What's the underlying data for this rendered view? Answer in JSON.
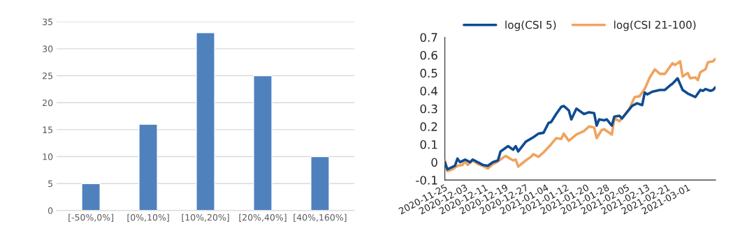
{
  "chart_data": [
    {
      "type": "bar",
      "categories": [
        "[-50%,0%]",
        "[0%,10%]",
        "[10%,20%]",
        "[20%,40%]",
        "[40%,160%]"
      ],
      "values": [
        5,
        16,
        33,
        25,
        10
      ],
      "color": "#4f81bd",
      "ylim": [
        0,
        35
      ],
      "yticks": [
        0,
        5,
        10,
        15,
        20,
        25,
        30,
        35
      ],
      "grid": "y",
      "legend": false
    },
    {
      "type": "line",
      "legend": "top",
      "grid": false,
      "xlim": [
        "2020-11-25",
        "2021-03-12"
      ],
      "ylim": [
        -0.1,
        0.7
      ],
      "yticks": [
        {
          "value": -0.1,
          "label": "-0.1"
        },
        0,
        0.1,
        0.2,
        0.3,
        0.4,
        0.5,
        0.6,
        0.7
      ],
      "xticks": [
        "2020-11-25",
        "2020-12-03",
        "2020-12-11",
        "2020-12-19",
        "2020-12-27",
        "2021-01-04",
        "2021-01-12",
        "2021-01-20",
        "2021-01-28",
        "2021-02-05",
        "2021-02-13",
        "2021-02-21",
        "2021-03-01"
      ],
      "series": [
        {
          "name": "log(CSI 5)",
          "color": "#0e4c92",
          "x": [
            "2020-11-25",
            "2020-11-26",
            "2020-11-29",
            "2020-11-30",
            "2020-12-01",
            "2020-12-03",
            "2020-12-05",
            "2020-12-06",
            "2020-12-08",
            "2020-12-10",
            "2020-12-12",
            "2020-12-14",
            "2020-12-16",
            "2020-12-17",
            "2020-12-20",
            "2020-12-22",
            "2020-12-23",
            "2020-12-24",
            "2020-12-27",
            "2020-12-30",
            "2021-01-01",
            "2021-01-03",
            "2021-01-05",
            "2021-01-06",
            "2021-01-08",
            "2021-01-10",
            "2021-01-11",
            "2021-01-13",
            "2021-01-14",
            "2021-01-16",
            "2021-01-19",
            "2021-01-21",
            "2021-01-23",
            "2021-01-24",
            "2021-01-25",
            "2021-01-27",
            "2021-01-28",
            "2021-01-30",
            "2021-01-31",
            "2021-02-02",
            "2021-02-03",
            "2021-02-05",
            "2021-02-07",
            "2021-02-09",
            "2021-02-11",
            "2021-02-12",
            "2021-02-13",
            "2021-02-15",
            "2021-02-18",
            "2021-02-20",
            "2021-02-22",
            "2021-02-23",
            "2021-02-25",
            "2021-02-27",
            "2021-03-01",
            "2021-03-04",
            "2021-03-06",
            "2021-03-07",
            "2021-03-08",
            "2021-03-10",
            "2021-03-11",
            "2021-03-12"
          ],
          "values": [
            0.0,
            -0.04,
            -0.02,
            0.02,
            0.0,
            0.015,
            0.0,
            0.015,
            0.0,
            -0.015,
            -0.02,
            0.0,
            0.01,
            0.06,
            0.09,
            0.07,
            0.09,
            0.06,
            0.115,
            0.14,
            0.16,
            0.165,
            0.22,
            0.225,
            0.27,
            0.31,
            0.315,
            0.29,
            0.24,
            0.3,
            0.27,
            0.28,
            0.275,
            0.205,
            0.24,
            0.235,
            0.24,
            0.205,
            0.255,
            0.26,
            0.245,
            0.28,
            0.315,
            0.33,
            0.32,
            0.39,
            0.38,
            0.395,
            0.405,
            0.405,
            0.43,
            0.44,
            0.47,
            0.405,
            0.385,
            0.365,
            0.405,
            0.4,
            0.41,
            0.4,
            0.405,
            0.42
          ]
        },
        {
          "name": "log(CSI 21-100)",
          "color": "#f0a35e",
          "x": [
            "2020-11-25",
            "2020-11-26",
            "2020-11-28",
            "2020-11-30",
            "2020-12-02",
            "2020-12-03",
            "2020-12-04",
            "2020-12-06",
            "2020-12-08",
            "2020-12-10",
            "2020-12-12",
            "2020-12-14",
            "2020-12-15",
            "2020-12-17",
            "2020-12-19",
            "2020-12-22",
            "2020-12-23",
            "2020-12-24",
            "2020-12-27",
            "2020-12-29",
            "2020-12-30",
            "2021-01-01",
            "2021-01-03",
            "2021-01-06",
            "2021-01-08",
            "2021-01-10",
            "2021-01-11",
            "2021-01-13",
            "2021-01-16",
            "2021-01-19",
            "2021-01-21",
            "2021-01-23",
            "2021-01-24",
            "2021-01-26",
            "2021-01-27",
            "2021-01-30",
            "2021-01-31",
            "2021-02-02",
            "2021-02-03",
            "2021-02-06",
            "2021-02-08",
            "2021-02-10",
            "2021-02-12",
            "2021-02-14",
            "2021-02-16",
            "2021-02-18",
            "2021-02-20",
            "2021-02-23",
            "2021-02-24",
            "2021-02-26",
            "2021-02-27",
            "2021-03-01",
            "2021-03-02",
            "2021-03-04",
            "2021-03-05",
            "2021-03-06",
            "2021-03-08",
            "2021-03-09",
            "2021-03-11",
            "2021-03-12"
          ],
          "values": [
            0.01,
            -0.05,
            -0.04,
            -0.02,
            -0.015,
            0.005,
            -0.015,
            0.01,
            -0.01,
            -0.02,
            -0.035,
            -0.01,
            -0.005,
            0.015,
            0.035,
            0.01,
            0.015,
            -0.025,
            0.01,
            0.03,
            0.045,
            0.03,
            0.055,
            0.1,
            0.135,
            0.13,
            0.16,
            0.12,
            0.155,
            0.175,
            0.2,
            0.195,
            0.135,
            0.18,
            0.185,
            0.155,
            0.245,
            0.23,
            0.245,
            0.3,
            0.365,
            0.37,
            0.41,
            0.475,
            0.52,
            0.495,
            0.495,
            0.555,
            0.545,
            0.565,
            0.48,
            0.5,
            0.47,
            0.475,
            0.46,
            0.505,
            0.52,
            0.56,
            0.565,
            0.58
          ]
        }
      ]
    }
  ]
}
